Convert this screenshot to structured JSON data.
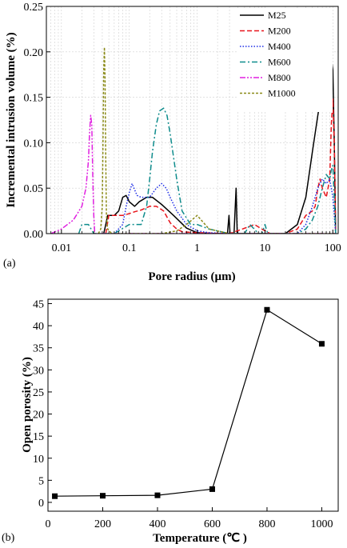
{
  "chart_data": [
    {
      "panel_label": "(a)",
      "type": "line",
      "xlabel": "Pore radius (µm)",
      "ylabel": "Incremental intrusion volume (%)",
      "xscale": "log",
      "xlim": [
        0.006,
        120
      ],
      "ylim": [
        0,
        0.25
      ],
      "xticks": [
        0.01,
        0.1,
        1,
        10,
        100
      ],
      "xtick_labels": [
        "0.01",
        "0.1",
        "1",
        "10",
        "100"
      ],
      "yticks": [
        0,
        0.05,
        0.1,
        0.15,
        0.2,
        0.25
      ],
      "ytick_labels": [
        "0.00",
        "0.05",
        "0.10",
        "0.15",
        "0.20",
        "0.25"
      ],
      "grid": true,
      "legend_position": "top-right",
      "series": [
        {
          "name": "M25",
          "color": "#000000",
          "dash": "solid",
          "x": [
            0.042,
            0.045,
            0.048,
            0.06,
            0.07,
            0.08,
            0.09,
            0.1,
            0.12,
            0.14,
            0.18,
            0.22,
            0.3,
            0.45,
            0.7,
            1.0,
            2.0,
            2.8,
            2.95,
            3.05,
            3.2,
            3.5,
            3.75,
            3.9,
            4.1,
            5,
            10,
            20,
            30,
            40,
            50,
            60,
            70,
            80,
            90,
            95,
            100,
            105,
            110
          ],
          "y": [
            0.0,
            0.01,
            0.02,
            0.02,
            0.025,
            0.04,
            0.042,
            0.035,
            0.03,
            0.035,
            0.04,
            0.04,
            0.032,
            0.02,
            0.006,
            0.001,
            0.0,
            0.0,
            0.02,
            0.0,
            0.0,
            0.0,
            0.05,
            0.0,
            0.0,
            0.0,
            0.0,
            0.0,
            0.01,
            0.04,
            0.09,
            0.13,
            0.16,
            0.18,
            0.19,
            0.193,
            0.18,
            0.1,
            0.0
          ]
        },
        {
          "name": "M200",
          "color": "#e8141b",
          "dash": "dashed",
          "x": [
            0.045,
            0.05,
            0.08,
            0.1,
            0.12,
            0.15,
            0.2,
            0.25,
            0.32,
            0.4,
            0.5,
            0.6,
            1.0,
            3,
            6,
            7,
            9,
            12,
            20,
            30,
            40,
            50,
            55,
            60,
            65,
            70,
            80,
            90,
            95,
            100,
            105,
            110
          ],
          "y": [
            0.0,
            0.02,
            0.02,
            0.022,
            0.024,
            0.026,
            0.03,
            0.03,
            0.025,
            0.012,
            0.005,
            0.002,
            0.001,
            0.0,
            0.008,
            0.01,
            0.005,
            0.0,
            0.0,
            0.005,
            0.02,
            0.025,
            0.03,
            0.05,
            0.06,
            0.05,
            0.04,
            0.06,
            0.12,
            0.148,
            0.1,
            0.0
          ]
        },
        {
          "name": "M400",
          "color": "#1e2ee6",
          "dash": "dotted",
          "x": [
            0.06,
            0.08,
            0.09,
            0.1,
            0.11,
            0.13,
            0.15,
            0.2,
            0.25,
            0.3,
            0.35,
            0.4,
            0.5,
            0.7,
            1.0,
            1.5,
            3,
            10,
            30,
            40,
            50,
            60,
            70,
            80,
            90,
            100,
            105,
            110
          ],
          "y": [
            0.0,
            0.01,
            0.03,
            0.045,
            0.055,
            0.042,
            0.04,
            0.04,
            0.05,
            0.055,
            0.05,
            0.04,
            0.025,
            0.01,
            0.003,
            0.001,
            0.0,
            0.0,
            0.0,
            0.01,
            0.03,
            0.05,
            0.06,
            0.055,
            0.06,
            0.04,
            0.02,
            0.0
          ]
        },
        {
          "name": "M600",
          "color": "#0e8c8c",
          "dash": "dashdot",
          "x": [
            0.018,
            0.02,
            0.025,
            0.03,
            0.04,
            0.06,
            0.1,
            0.15,
            0.18,
            0.2,
            0.22,
            0.25,
            0.28,
            0.32,
            0.36,
            0.4,
            0.5,
            0.6,
            0.8,
            1.0,
            1.5,
            3,
            5,
            6,
            8,
            9,
            10,
            11,
            12,
            20,
            30,
            40,
            50,
            60,
            70,
            80,
            90,
            95,
            100,
            105,
            110
          ],
          "y": [
            0.0,
            0.01,
            0.01,
            0.0,
            0.0,
            0.0,
            0.01,
            0.01,
            0.03,
            0.06,
            0.09,
            0.12,
            0.135,
            0.138,
            0.13,
            0.11,
            0.06,
            0.025,
            0.01,
            0.01,
            0.005,
            0.0,
            0.0,
            0.01,
            0.0,
            0.0,
            0.01,
            0.0,
            0.0,
            0.0,
            0.0,
            0.005,
            0.015,
            0.03,
            0.05,
            0.065,
            0.06,
            0.07,
            0.075,
            0.04,
            0.0
          ]
        },
        {
          "name": "M800",
          "color": "#e020e0",
          "dash": "dashdotdot",
          "x": [
            0.007,
            0.01,
            0.015,
            0.02,
            0.023,
            0.025,
            0.026,
            0.027,
            0.028,
            0.029,
            0.03,
            0.031,
            0.035,
            0.05,
            0.1,
            0.3,
            1,
            3,
            10,
            30,
            100,
            110
          ],
          "y": [
            0.0,
            0.005,
            0.015,
            0.03,
            0.05,
            0.08,
            0.11,
            0.13,
            0.12,
            0.06,
            0.02,
            0.0,
            0.0,
            0.0,
            0.0,
            0.0,
            0.0,
            0.0,
            0.0,
            0.0,
            0.0,
            0.0
          ]
        },
        {
          "name": "M1000",
          "color": "#8a8a18",
          "dash": "shortdash",
          "x": [
            0.035,
            0.038,
            0.04,
            0.041,
            0.042,
            0.043,
            0.044,
            0.045,
            0.046,
            0.048,
            0.055,
            0.1,
            0.3,
            0.5,
            0.7,
            1.0,
            1.5,
            3,
            10,
            30,
            100,
            110
          ],
          "y": [
            0.0,
            0.005,
            0.03,
            0.1,
            0.18,
            0.205,
            0.17,
            0.08,
            0.02,
            0.005,
            0.0,
            0.0,
            0.0,
            0.003,
            0.01,
            0.02,
            0.005,
            0.0,
            0.0,
            0.0,
            0.0,
            0.0
          ]
        }
      ]
    },
    {
      "panel_label": "(b)",
      "type": "line",
      "xlabel": "Temperature (℃ )",
      "ylabel": "Open porosity (%)",
      "xlim": [
        0,
        1060
      ],
      "ylim": [
        -2,
        46
      ],
      "xticks": [
        0,
        200,
        400,
        600,
        800,
        1000
      ],
      "xtick_labels": [
        "0",
        "200",
        "400",
        "600",
        "800",
        "1000"
      ],
      "yticks": [
        0,
        5,
        10,
        15,
        20,
        25,
        30,
        35,
        40,
        45
      ],
      "ytick_labels": [
        "0",
        "5",
        "10",
        "15",
        "20",
        "25",
        "30",
        "35",
        "40",
        "45"
      ],
      "grid": false,
      "marker": "square",
      "color": "#000000",
      "x": [
        25,
        200,
        400,
        600,
        800,
        1000
      ],
      "y": [
        1.4,
        1.5,
        1.6,
        3.0,
        43.6,
        35.9
      ]
    }
  ]
}
